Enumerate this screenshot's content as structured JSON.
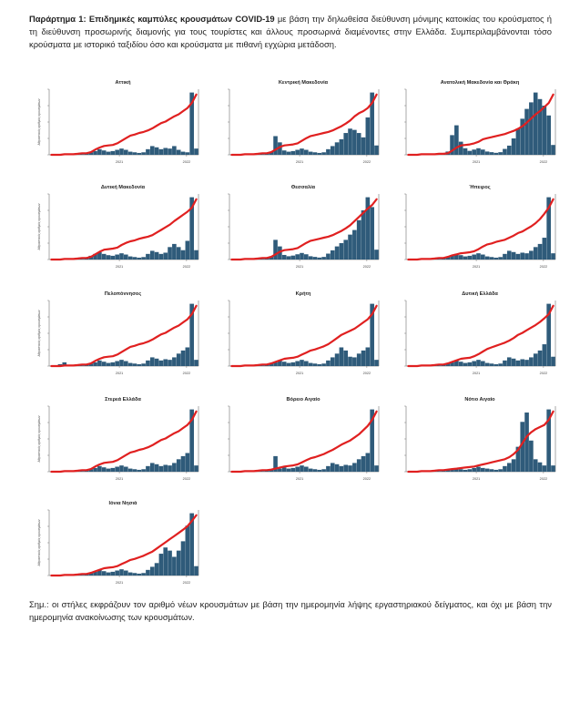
{
  "intro": {
    "label": "Παράρτημα 1:",
    "bold": "Επιδημικές καμπύλες κρουσμάτων COVID-19",
    "text": "με βάση την δηλωθείσα διεύθυνση μόνιμης κατοικίας του κρούσματος ή τη διεύθυνση προσωρινής διαμονής για τους τουρίστες και άλλους προσωρινά διαμένοντες στην Ελλάδα. Συμπεριλαμβάνονται τόσο κρούσματα με ιστορικό ταξιδίου όσο και κρούσματα με πιθανή εγχώρια μετάδοση."
  },
  "note": "Σημ.: οι στήλες εκφράζουν τον αριθμό νέων κρουσμάτων με βάση την ημερομηνία λήψης εργαστηριακού δείγματος, και όχι με βάση την ημερομηνία ανακοίνωσης των κρουσμάτων.",
  "colors": {
    "line": "#e02020",
    "bars": "#2f5b7a",
    "axis": "#555555"
  },
  "chart_data": [
    {
      "type": "bar+line",
      "title": "Αττική",
      "ylabel": "Αθροιστικός αριθμός κρουσμάτων",
      "x_ticks": [
        "2021",
        "2022"
      ],
      "bars": [
        0,
        0,
        0,
        1,
        1,
        2,
        1,
        1,
        2,
        4,
        6,
        9,
        7,
        5,
        6,
        8,
        10,
        8,
        5,
        4,
        3,
        4,
        9,
        14,
        12,
        9,
        11,
        10,
        14,
        8,
        5,
        4,
        100,
        10
      ],
      "cumulative": [
        0,
        0,
        0,
        1,
        1,
        1,
        2,
        3,
        3,
        5,
        10,
        14,
        17,
        18,
        19,
        22,
        27,
        32,
        37,
        39,
        42,
        44,
        47,
        51,
        56,
        61,
        64,
        69,
        74,
        78,
        84,
        90,
        100,
        116
      ]
    },
    {
      "type": "bar+line",
      "title": "Κεντρική Μακεδονία",
      "x_ticks": [
        "2021",
        "2022"
      ],
      "bars": [
        0,
        0,
        0,
        1,
        1,
        2,
        1,
        1,
        2,
        5,
        30,
        20,
        7,
        5,
        6,
        8,
        10,
        8,
        5,
        4,
        3,
        4,
        9,
        14,
        20,
        25,
        35,
        42,
        40,
        35,
        28,
        60,
        100,
        15
      ],
      "cumulative": [
        0,
        0,
        0,
        1,
        1,
        1,
        2,
        3,
        3,
        5,
        10,
        15,
        18,
        19,
        20,
        22,
        27,
        32,
        36,
        38,
        40,
        42,
        44,
        47,
        51,
        55,
        60,
        66,
        74,
        80,
        84,
        90,
        100,
        116
      ]
    },
    {
      "type": "bar+line",
      "title": "Ανατολική Μακεδονία και Θράκη",
      "x_ticks": [
        "2021",
        "2022"
      ],
      "bars": [
        0,
        0,
        0,
        1,
        1,
        2,
        1,
        1,
        2,
        5,
        30,
        45,
        20,
        10,
        6,
        8,
        10,
        8,
        5,
        4,
        3,
        4,
        9,
        14,
        25,
        40,
        55,
        70,
        80,
        95,
        85,
        75,
        60,
        15
      ],
      "cumulative": [
        0,
        0,
        0,
        1,
        1,
        1,
        1,
        2,
        2,
        3,
        8,
        14,
        18,
        19,
        20,
        22,
        25,
        30,
        32,
        34,
        36,
        38,
        40,
        43,
        46,
        50,
        55,
        62,
        70,
        78,
        84,
        92,
        100,
        116
      ]
    },
    {
      "type": "bar+line",
      "title": "Δυτική Μακεδονία",
      "ylabel": "Αθροιστικός αριθμός κρουσμάτων",
      "x_ticks": [
        "2021",
        "2022"
      ],
      "bars": [
        0,
        0,
        0,
        1,
        1,
        2,
        1,
        1,
        2,
        6,
        9,
        12,
        9,
        7,
        6,
        8,
        10,
        8,
        5,
        4,
        3,
        4,
        9,
        14,
        12,
        9,
        11,
        20,
        25,
        20,
        15,
        30,
        100,
        15
      ],
      "cumulative": [
        0,
        0,
        0,
        1,
        1,
        1,
        2,
        3,
        3,
        5,
        10,
        15,
        19,
        20,
        21,
        23,
        28,
        32,
        35,
        37,
        40,
        42,
        44,
        47,
        52,
        57,
        62,
        67,
        74,
        80,
        86,
        92,
        100,
        116
      ]
    },
    {
      "type": "bar+line",
      "title": "Θεσσαλία",
      "x_ticks": [
        "2021",
        "2022"
      ],
      "bars": [
        0,
        0,
        0,
        1,
        1,
        2,
        1,
        1,
        2,
        5,
        30,
        20,
        7,
        5,
        6,
        8,
        10,
        8,
        5,
        4,
        3,
        4,
        9,
        14,
        20,
        25,
        30,
        38,
        45,
        60,
        75,
        95,
        80,
        15
      ],
      "cumulative": [
        0,
        0,
        0,
        1,
        1,
        1,
        2,
        3,
        3,
        5,
        10,
        15,
        18,
        19,
        20,
        22,
        27,
        32,
        36,
        38,
        40,
        42,
        44,
        47,
        51,
        55,
        60,
        66,
        74,
        82,
        90,
        98,
        105,
        116
      ]
    },
    {
      "type": "bar+line",
      "title": "Ήπειρος",
      "x_ticks": [
        "2021",
        "2022"
      ],
      "bars": [
        0,
        0,
        0,
        1,
        1,
        2,
        1,
        1,
        2,
        4,
        6,
        9,
        7,
        5,
        6,
        8,
        10,
        8,
        5,
        4,
        3,
        4,
        9,
        14,
        12,
        9,
        11,
        10,
        14,
        20,
        25,
        35,
        100,
        10
      ],
      "cumulative": [
        0,
        0,
        0,
        1,
        1,
        1,
        2,
        3,
        3,
        5,
        8,
        10,
        12,
        13,
        14,
        16,
        20,
        25,
        29,
        31,
        34,
        36,
        38,
        42,
        46,
        51,
        54,
        59,
        64,
        70,
        78,
        88,
        100,
        116
      ]
    },
    {
      "type": "bar+line",
      "title": "Πελοπόννησος",
      "ylabel": "Αθροιστικός αριθμός κρουσμάτων",
      "x_ticks": [
        "2021",
        "2022"
      ],
      "bars": [
        0,
        0,
        3,
        6,
        1,
        2,
        1,
        1,
        2,
        4,
        6,
        9,
        7,
        5,
        6,
        8,
        10,
        8,
        5,
        4,
        3,
        4,
        9,
        14,
        12,
        9,
        11,
        10,
        14,
        20,
        25,
        30,
        100,
        10
      ],
      "cumulative": [
        0,
        0,
        0,
        1,
        1,
        1,
        2,
        3,
        3,
        5,
        10,
        14,
        17,
        18,
        19,
        22,
        27,
        32,
        37,
        39,
        42,
        44,
        47,
        51,
        56,
        61,
        64,
        69,
        74,
        78,
        84,
        90,
        100,
        116
      ]
    },
    {
      "type": "bar+line",
      "title": "Κρήτη",
      "x_ticks": [
        "2021",
        "2022"
      ],
      "bars": [
        0,
        0,
        0,
        1,
        1,
        2,
        1,
        1,
        2,
        4,
        6,
        9,
        7,
        5,
        6,
        8,
        10,
        8,
        5,
        4,
        3,
        4,
        9,
        14,
        20,
        30,
        25,
        15,
        14,
        20,
        25,
        30,
        100,
        10
      ],
      "cumulative": [
        0,
        0,
        0,
        1,
        1,
        1,
        2,
        3,
        3,
        5,
        8,
        11,
        14,
        15,
        16,
        18,
        22,
        26,
        30,
        32,
        35,
        38,
        42,
        48,
        54,
        60,
        64,
        68,
        72,
        78,
        84,
        90,
        100,
        116
      ]
    },
    {
      "type": "bar+line",
      "title": "Δυτική Ελλάδα",
      "x_ticks": [
        "2021",
        "2022"
      ],
      "bars": [
        0,
        0,
        0,
        1,
        1,
        2,
        1,
        1,
        2,
        4,
        6,
        9,
        7,
        5,
        6,
        8,
        10,
        8,
        5,
        4,
        3,
        4,
        9,
        14,
        12,
        9,
        11,
        10,
        14,
        20,
        25,
        35,
        100,
        15
      ],
      "cumulative": [
        0,
        0,
        0,
        1,
        1,
        1,
        2,
        3,
        3,
        5,
        8,
        11,
        14,
        15,
        16,
        19,
        23,
        28,
        33,
        36,
        39,
        42,
        45,
        49,
        54,
        60,
        64,
        69,
        74,
        79,
        85,
        92,
        100,
        116
      ]
    },
    {
      "type": "bar+line",
      "title": "Στερεά Ελλάδα",
      "ylabel": "Αθροιστικός αριθμός κρουσμάτων",
      "x_ticks": [
        "2021",
        "2022"
      ],
      "bars": [
        0,
        0,
        0,
        1,
        1,
        2,
        1,
        1,
        2,
        4,
        6,
        9,
        7,
        5,
        6,
        8,
        10,
        8,
        5,
        4,
        3,
        4,
        9,
        14,
        12,
        9,
        11,
        10,
        14,
        20,
        25,
        30,
        100,
        10
      ],
      "cumulative": [
        0,
        0,
        0,
        1,
        1,
        1,
        2,
        3,
        3,
        5,
        10,
        14,
        17,
        18,
        19,
        22,
        27,
        32,
        37,
        39,
        42,
        44,
        47,
        51,
        56,
        61,
        64,
        69,
        74,
        78,
        84,
        90,
        100,
        116
      ]
    },
    {
      "type": "bar+line",
      "title": "Βόρειο Αιγαίο",
      "x_ticks": [
        "2021",
        "2022"
      ],
      "bars": [
        0,
        0,
        0,
        1,
        1,
        2,
        1,
        1,
        2,
        3,
        25,
        5,
        7,
        5,
        6,
        8,
        10,
        8,
        5,
        4,
        3,
        4,
        9,
        14,
        12,
        9,
        11,
        10,
        14,
        20,
        25,
        30,
        100,
        10
      ],
      "cumulative": [
        0,
        0,
        0,
        1,
        1,
        1,
        2,
        3,
        3,
        4,
        6,
        8,
        10,
        11,
        12,
        14,
        18,
        22,
        26,
        28,
        31,
        34,
        38,
        42,
        47,
        52,
        56,
        60,
        66,
        72,
        80,
        88,
        100,
        116
      ]
    },
    {
      "type": "bar+line",
      "title": "Νότιο Αιγαίο",
      "x_ticks": [
        "2021",
        "2022"
      ],
      "bars": [
        0,
        0,
        0,
        1,
        1,
        2,
        1,
        1,
        2,
        3,
        4,
        5,
        4,
        3,
        4,
        6,
        8,
        6,
        5,
        4,
        3,
        4,
        9,
        14,
        20,
        40,
        80,
        95,
        50,
        20,
        15,
        10,
        100,
        10
      ],
      "cumulative": [
        0,
        0,
        0,
        1,
        1,
        1,
        2,
        3,
        3,
        4,
        5,
        6,
        7,
        8,
        9,
        10,
        12,
        14,
        16,
        18,
        20,
        22,
        24,
        28,
        34,
        42,
        55,
        68,
        76,
        82,
        86,
        90,
        100,
        116
      ]
    },
    {
      "type": "bar+line",
      "title": "Ιόνια Νησιά",
      "ylabel": "Αθροιστικός αριθμός κρουσμάτων",
      "x_ticks": [
        "2021",
        "2022"
      ],
      "bars": [
        0,
        0,
        0,
        1,
        1,
        2,
        1,
        1,
        2,
        4,
        6,
        9,
        7,
        5,
        6,
        8,
        10,
        8,
        5,
        4,
        3,
        4,
        9,
        14,
        20,
        35,
        45,
        40,
        30,
        40,
        55,
        80,
        100,
        15
      ],
      "cumulative": [
        0,
        0,
        0,
        1,
        1,
        1,
        2,
        3,
        3,
        5,
        8,
        11,
        14,
        15,
        16,
        18,
        22,
        26,
        30,
        32,
        35,
        38,
        42,
        46,
        52,
        58,
        64,
        70,
        76,
        82,
        88,
        95,
        105,
        116
      ]
    }
  ]
}
